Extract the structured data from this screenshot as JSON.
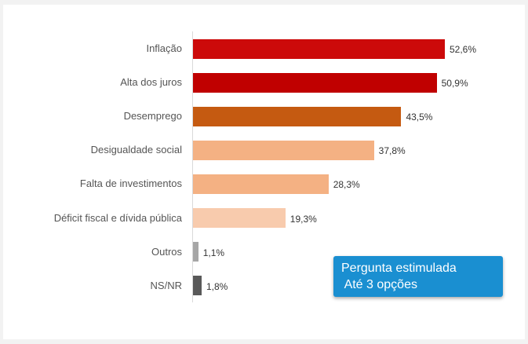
{
  "chart_data": {
    "type": "bar",
    "orientation": "horizontal",
    "categories": [
      "Inflação",
      "Alta dos juros",
      "Desemprego",
      "Desigualdade social",
      "Falta de investimentos",
      "Déficit fiscal e dívida pública",
      "Outros",
      "NS/NR"
    ],
    "values": [
      52.6,
      50.9,
      43.5,
      37.8,
      28.3,
      19.3,
      1.1,
      1.8
    ],
    "value_labels": [
      "52,6%",
      "50,9%",
      "43,5%",
      "37,8%",
      "28,3%",
      "19,3%",
      "1,1%",
      "1,8%"
    ],
    "colors": [
      "#cc0a0a",
      "#c00000",
      "#c55a11",
      "#f4b183",
      "#f4b183",
      "#f8cbad",
      "#a6a6a6",
      "#595959"
    ],
    "xlim": [
      0,
      60
    ],
    "grid": false,
    "legend": "none"
  },
  "note": {
    "line1": "Pergunta estimulada",
    "line2": " Até 3 opções",
    "color": "#1a8fd1"
  }
}
